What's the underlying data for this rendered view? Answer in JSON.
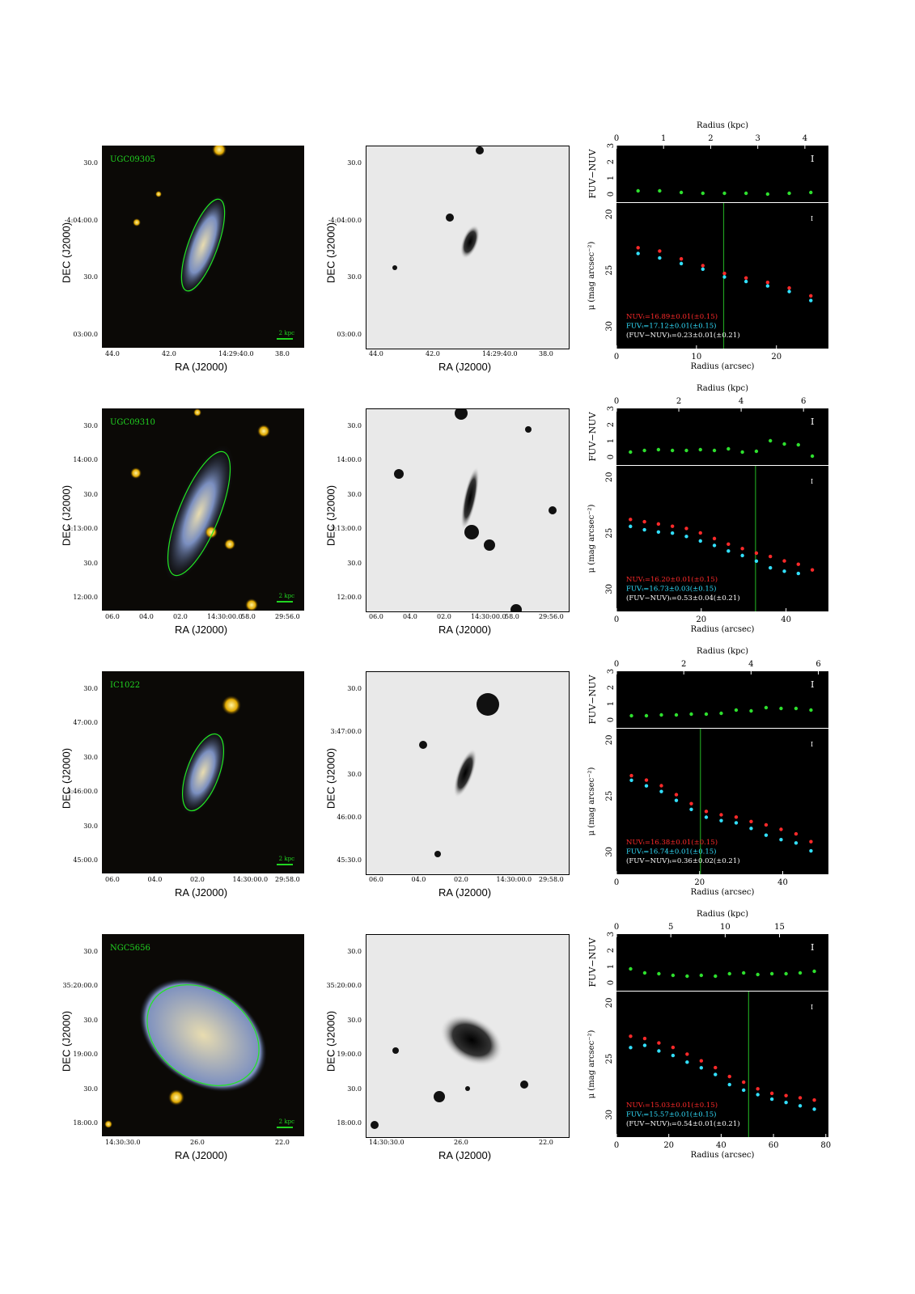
{
  "common": {
    "ra_label": "RA (J2000)",
    "dec_label": "DEC (J2000)",
    "scale_label": "2 kpc",
    "top_axis_label": "Radius (kpc)",
    "bottom_axis_label": "Radius (arcsec)",
    "color_axis_label": "FUV−NUV",
    "sb_axis_label": "μ (mag arcsec⁻²)",
    "colors": {
      "nuv": "#ff2a2a",
      "fuv": "#32e0ff",
      "color": "#2ee02e",
      "vline": "#1f9d1f",
      "label": "#21d421"
    }
  },
  "rows": [
    {
      "name": "UGC09305",
      "ra_ticks": [
        "44.0",
        "42.0",
        "14:29:40.0",
        "38.0"
      ],
      "dec_ticks": [
        "30.0",
        "-4:04:00.0",
        "30.0",
        "03:00.0"
      ],
      "dec_ticks_gray": [
        "30.0",
        "-4:04:00.0",
        "30.0",
        "03:00.0"
      ],
      "legend": [
        "NUVₜ=16.89±0.01(±0.15)",
        "FUVₜ=17.12±0.01(±0.15)",
        "(FUV−NUV)ₜ=0.23±0.01(±0.21)"
      ]
    },
    {
      "name": "UGC09310",
      "ra_ticks": [
        "06.0",
        "04.0",
        "02.0",
        "14:30:00.0",
        "58.0",
        "29:56.0"
      ],
      "dec_ticks": [
        "30.0",
        "14:00.0",
        "30.0",
        "3:13:00.0",
        "30.0",
        "12:00.0"
      ],
      "dec_ticks_gray": [
        "30.0",
        "14:00.0",
        "30.0",
        "3:13:00.0",
        "30.0",
        "12:00.0"
      ],
      "legend": [
        "NUVₜ=16.20±0.01(±0.15)",
        "FUVₜ=16.73±0.03(±0.15)",
        "(FUV−NUV)ₜ=0.53±0.04(±0.21)"
      ]
    },
    {
      "name": "IC1022",
      "ra_ticks": [
        "06.0",
        "04.0",
        "02.0",
        "14:30:00.0",
        "29:58.0"
      ],
      "dec_ticks": [
        "30.0",
        "47:00.0",
        "30.0",
        "3:46:00.0",
        "30.0",
        "45:00.0"
      ],
      "dec_ticks_gray": [
        "30.0",
        "3:47:00.0",
        "30.0",
        "46:00.0",
        "45:30.0"
      ],
      "legend": [
        "NUVₜ=16.38±0.01(±0.15)",
        "FUVₜ=16.74±0.01(±0.15)",
        "(FUV−NUV)ₜ=0.36±0.02(±0.21)"
      ]
    },
    {
      "name": "NGC5656",
      "ra_ticks": [
        "14:30:30.0",
        "26.0",
        "22.0"
      ],
      "dec_ticks": [
        "30.0",
        "35:20:00.0",
        "30.0",
        "19:00.0",
        "30.0",
        "18:00.0"
      ],
      "dec_ticks_gray": [
        "30.0",
        "35:20:00.0",
        "30.0",
        "19:00.0",
        "30.0",
        "18:00.0"
      ],
      "legend": [
        "NUVₜ=15.03±0.01(±0.15)",
        "FUVₜ=15.57±0.01(±0.15)",
        "(FUV−NUV)ₜ=0.54±0.01(±0.21)"
      ]
    }
  ],
  "chart_data": [
    {
      "type": "scatter",
      "galaxy": "UGC09305",
      "top_axis": {
        "label": "Radius (kpc)",
        "ticks": [
          0,
          1,
          2,
          3,
          4
        ],
        "range": [
          0,
          4.5
        ]
      },
      "bottom_axis": {
        "label": "Radius (arcsec)",
        "ticks": [
          0,
          10,
          20
        ],
        "range": [
          0,
          26.5
        ]
      },
      "color_panel": {
        "ylabel": "FUV−NUV",
        "ylim": [
          -0.5,
          3
        ],
        "yticks": [
          0,
          1,
          2,
          3
        ],
        "series": [
          {
            "name": "FUV−NUV",
            "x": [
              2.7,
              5.4,
              8.1,
              10.8,
              13.5,
              16.2,
              18.9,
              21.6,
              24.3
            ],
            "y": [
              0.2,
              0.2,
              0.1,
              0.05,
              0.05,
              0.05,
              0,
              0.05,
              0.1
            ]
          }
        ]
      },
      "sb_panel": {
        "ylabel": "μ (mag arcsec⁻²)",
        "ylim": [
          32,
          19
        ],
        "yticks": [
          20,
          25,
          30
        ],
        "vline_x": 13.4,
        "series": [
          {
            "name": "NUV",
            "x": [
              2.7,
              5.4,
              8.1,
              10.8,
              13.5,
              16.2,
              18.9,
              21.6,
              24.3
            ],
            "y": [
              23.1,
              23.4,
              24.1,
              24.7,
              25.4,
              25.8,
              26.2,
              26.7,
              27.4
            ]
          },
          {
            "name": "FUV",
            "x": [
              2.7,
              5.4,
              8.1,
              10.8,
              13.5,
              16.2,
              18.9,
              21.6,
              24.3
            ],
            "y": [
              23.4,
              23.8,
              24.3,
              24.8,
              25.5,
              25.9,
              26.3,
              26.8,
              27.6
            ]
          }
        ]
      }
    },
    {
      "type": "scatter",
      "galaxy": "UGC09310",
      "top_axis": {
        "label": "Radius (kpc)",
        "ticks": [
          0,
          2,
          4,
          6
        ],
        "range": [
          0,
          6.8
        ]
      },
      "bottom_axis": {
        "label": "Radius (arcsec)",
        "ticks": [
          0,
          20,
          40
        ],
        "range": [
          0,
          50
        ]
      },
      "color_panel": {
        "ylabel": "FUV−NUV",
        "ylim": [
          -0.5,
          3
        ],
        "yticks": [
          0,
          1,
          2,
          3
        ],
        "series": [
          {
            "name": "FUV−NUV",
            "x": [
              3.3,
              6.6,
              9.9,
              13.2,
              16.5,
              19.8,
              23.1,
              26.4,
              29.7,
              33,
              36.3,
              39.6,
              42.9,
              46.2
            ],
            "y": [
              0.3,
              0.4,
              0.45,
              0.4,
              0.4,
              0.45,
              0.4,
              0.5,
              0.3,
              0.35,
              1.0,
              0.8,
              0.75,
              0.05
            ]
          }
        ]
      },
      "sb_panel": {
        "ylabel": "μ (mag arcsec⁻²)",
        "ylim": [
          32,
          19
        ],
        "yticks": [
          20,
          25,
          30
        ],
        "vline_x": 32.8,
        "series": [
          {
            "name": "NUV",
            "x": [
              3.3,
              6.6,
              9.9,
              13.2,
              16.5,
              19.8,
              23.1,
              26.4,
              29.7,
              33,
              36.3,
              39.6,
              42.9,
              46.2
            ],
            "y": [
              23.9,
              24.1,
              24.3,
              24.5,
              24.7,
              25.1,
              25.6,
              26.1,
              26.5,
              26.9,
              27.2,
              27.6,
              27.9,
              28.4
            ]
          },
          {
            "name": "FUV",
            "x": [
              3.3,
              6.6,
              9.9,
              13.2,
              16.5,
              19.8,
              23.1,
              26.4,
              29.7,
              33,
              36.3,
              39.6,
              42.9
            ],
            "y": [
              24.3,
              24.6,
              24.8,
              24.9,
              25.2,
              25.6,
              26.0,
              26.5,
              26.9,
              27.4,
              28.0,
              28.3,
              28.5
            ]
          }
        ]
      }
    },
    {
      "type": "scatter",
      "galaxy": "IC1022",
      "top_axis": {
        "label": "Radius (kpc)",
        "ticks": [
          0,
          2,
          4,
          6
        ],
        "range": [
          0,
          6.3
        ]
      },
      "bottom_axis": {
        "label": "Radius (arcsec)",
        "ticks": [
          0,
          20,
          40
        ],
        "range": [
          0,
          51
        ]
      },
      "color_panel": {
        "ylabel": "FUV−NUV",
        "ylim": [
          -0.5,
          3
        ],
        "yticks": [
          0,
          1,
          2,
          3
        ],
        "series": [
          {
            "name": "FUV−NUV",
            "x": [
              3.6,
              7.2,
              10.8,
              14.4,
              18,
              21.6,
              25.2,
              28.8,
              32.4,
              36,
              39.6,
              43.2,
              46.8
            ],
            "y": [
              0.25,
              0.25,
              0.3,
              0.3,
              0.35,
              0.35,
              0.4,
              0.6,
              0.55,
              0.75,
              0.7,
              0.7,
              0.6
            ]
          }
        ]
      },
      "sb_panel": {
        "ylabel": "μ (mag arcsec⁻²)",
        "ylim": [
          32,
          19
        ],
        "yticks": [
          20,
          25,
          30
        ],
        "vline_x": 20.2,
        "series": [
          {
            "name": "NUV",
            "x": [
              3.6,
              7.2,
              10.8,
              14.4,
              18,
              21.6,
              25.2,
              28.8,
              32.4,
              36,
              39.6,
              43.2,
              46.8
            ],
            "y": [
              23.3,
              23.7,
              24.2,
              25.0,
              25.8,
              26.5,
              26.8,
              27.0,
              27.4,
              27.7,
              28.1,
              28.5,
              29.2
            ]
          },
          {
            "name": "FUV",
            "x": [
              3.6,
              7.2,
              10.8,
              14.4,
              18,
              21.6,
              25.2,
              28.8,
              32.4,
              36,
              39.6,
              43.2,
              46.8
            ],
            "y": [
              23.5,
              24.0,
              24.5,
              25.3,
              26.1,
              26.8,
              27.1,
              27.3,
              27.8,
              28.4,
              28.8,
              29.1,
              29.8
            ]
          }
        ]
      }
    },
    {
      "type": "scatter",
      "galaxy": "NGC5656",
      "top_axis": {
        "label": "Radius (kpc)",
        "ticks": [
          0,
          5,
          10,
          15
        ],
        "range": [
          0,
          19.5
        ]
      },
      "bottom_axis": {
        "label": "Radius (arcsec)",
        "ticks": [
          0,
          20,
          40,
          60,
          80
        ],
        "range": [
          0,
          81
        ]
      },
      "color_panel": {
        "ylabel": "FUV−NUV",
        "ylim": [
          -0.5,
          3
        ],
        "yticks": [
          0,
          1,
          2,
          3
        ],
        "series": [
          {
            "name": "FUV−NUV",
            "x": [
              5.4,
              10.8,
              16.2,
              21.6,
              27,
              32.4,
              37.8,
              43.2,
              48.6,
              54,
              59.4,
              64.8,
              70.2,
              75.6
            ],
            "y": [
              0.85,
              0.6,
              0.55,
              0.45,
              0.4,
              0.45,
              0.4,
              0.55,
              0.6,
              0.5,
              0.55,
              0.55,
              0.6,
              0.7
            ]
          }
        ]
      },
      "sb_panel": {
        "ylabel": "μ (mag arcsec⁻²)",
        "ylim": [
          32,
          19
        ],
        "yticks": [
          20,
          25,
          30
        ],
        "vline_x": 50.5,
        "series": [
          {
            "name": "NUV",
            "x": [
              5.4,
              10.8,
              16.2,
              21.6,
              27,
              32.4,
              37.8,
              43.2,
              48.6,
              54,
              59.4,
              64.8,
              70.2,
              75.6
            ],
            "y": [
              23.1,
              23.3,
              23.7,
              24.1,
              24.7,
              25.3,
              25.9,
              26.7,
              27.2,
              27.8,
              28.2,
              28.4,
              28.6,
              28.8
            ]
          },
          {
            "name": "FUV",
            "x": [
              5.4,
              10.8,
              16.2,
              21.6,
              27,
              32.4,
              37.8,
              43.2,
              48.6,
              54,
              59.4,
              64.8,
              70.2,
              75.6
            ],
            "y": [
              23.9,
              23.7,
              24.2,
              24.6,
              25.2,
              25.7,
              26.3,
              27.2,
              27.7,
              28.1,
              28.5,
              28.8,
              29.1,
              29.4
            ]
          }
        ]
      }
    }
  ]
}
